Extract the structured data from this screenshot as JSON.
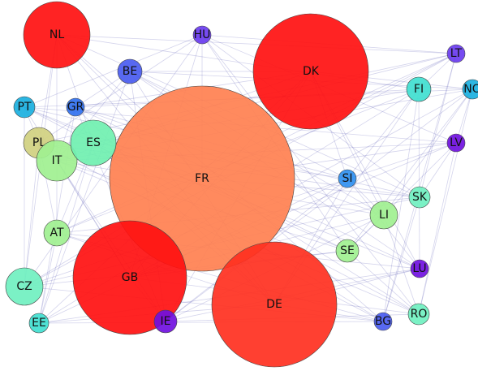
{
  "nodes": [
    {
      "label": "FR",
      "color": "#ff8050"
    },
    {
      "label": "DK",
      "color": "#ff1010"
    },
    {
      "label": "NL",
      "color": "#ff1010"
    },
    {
      "label": "GB",
      "color": "#ff1010"
    },
    {
      "label": "DE",
      "color": "#ff3020"
    },
    {
      "label": "HU",
      "color": "#6a3cf0"
    },
    {
      "label": "BE",
      "color": "#4a5cf0"
    },
    {
      "label": "LT",
      "color": "#6a3cf0"
    },
    {
      "label": "NO",
      "color": "#1ab0e0"
    },
    {
      "label": "FI",
      "color": "#40e0d0"
    },
    {
      "label": "PT",
      "color": "#1ab0e0"
    },
    {
      "label": "GR",
      "color": "#3070f0"
    },
    {
      "label": "PL",
      "color": "#d0d080"
    },
    {
      "label": "IT",
      "color": "#a0f090"
    },
    {
      "label": "ES",
      "color": "#70f0b0"
    },
    {
      "label": "LV",
      "color": "#7010e0"
    },
    {
      "label": "SI",
      "color": "#3090f0"
    },
    {
      "label": "SK",
      "color": "#70f0c0"
    },
    {
      "label": "LI",
      "color": "#a0f090"
    },
    {
      "label": "AT",
      "color": "#a0f090"
    },
    {
      "label": "SE",
      "color": "#a0f090"
    },
    {
      "label": "LU",
      "color": "#7010e0"
    },
    {
      "label": "CZ",
      "color": "#70f0c0"
    },
    {
      "label": "IE",
      "color": "#7010e0"
    },
    {
      "label": "BG",
      "color": "#4a5cf0"
    },
    {
      "label": "RO",
      "color": "#70f0c0"
    },
    {
      "label": "EE",
      "color": "#40e0d0"
    }
  ]
}
